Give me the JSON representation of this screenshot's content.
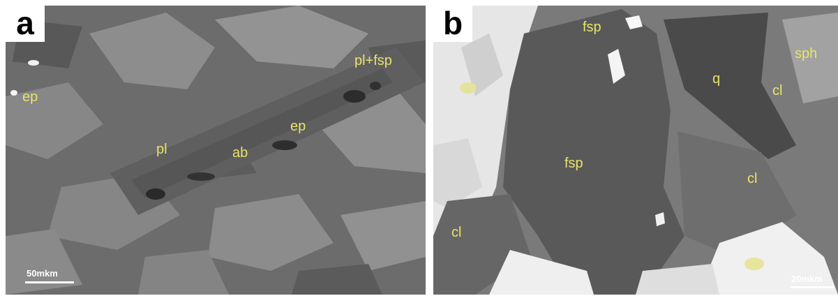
{
  "panels": [
    {
      "letter": "a",
      "labels": [
        "ep",
        "pl+fsp",
        "pl",
        "ab",
        "ep"
      ],
      "scale_bar": "50mkm"
    },
    {
      "letter": "b",
      "labels": [
        "fsp",
        "q",
        "sph",
        "cl",
        "fsp",
        "cl",
        "cl"
      ],
      "scale_bar": "20mkm"
    }
  ],
  "colors": {
    "label": "#e8e36a",
    "panel_a_base": "#6c6c6c",
    "panel_b_dark": "#565656",
    "panel_b_bright": "#e9e9e9"
  }
}
